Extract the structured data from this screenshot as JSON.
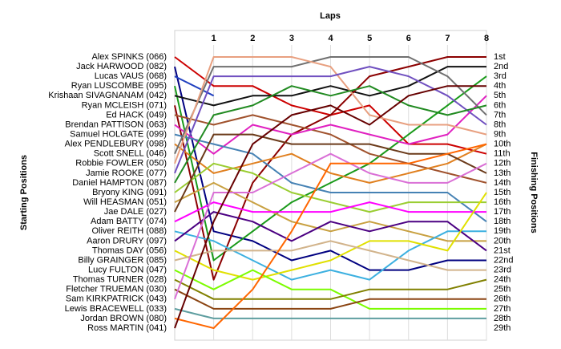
{
  "chart_data": {
    "type": "bump",
    "title": "Laps",
    "y_label": "Starting Positions",
    "y2_label": "Finishing Positions",
    "x": [
      0,
      1,
      2,
      3,
      4,
      5,
      6,
      7,
      8
    ],
    "xlim": [
      0,
      8
    ],
    "xticks": [
      1,
      2,
      3,
      4,
      5,
      6,
      7,
      8
    ],
    "ylim": [
      29,
      1
    ],
    "grid": true,
    "finish_labels": [
      "1st",
      "2nd",
      "3rd",
      "4th",
      "5th",
      "6th",
      "7th",
      "8th",
      "9th",
      "10th",
      "11th",
      "12th",
      "13th",
      "14th",
      "15th",
      "16th",
      "17th",
      "18th",
      "19th",
      "20th",
      "21st",
      "22nd",
      "23rd",
      "24th",
      "25th",
      "26th",
      "27th",
      "28th",
      "29th"
    ],
    "series": [
      {
        "name": "Alex SPINKS (066)",
        "color": "#cc0000",
        "values": [
          1,
          4,
          4,
          6,
          7,
          6,
          10,
          10,
          11
        ]
      },
      {
        "name": "Jack HARWOOD (082)",
        "color": "#000080",
        "values": [
          2,
          19,
          20,
          22,
          21,
          23,
          23,
          22,
          22
        ]
      },
      {
        "name": "Lucas VAUS (068)",
        "color": "#1f3fbf",
        "values": [
          3,
          5,
          null,
          null,
          null,
          null,
          null,
          null,
          null
        ]
      },
      {
        "name": "Ryan LUSCOMBE (095)",
        "color": "#1a9a1a",
        "values": [
          4,
          22,
          19,
          16,
          14,
          12,
          9,
          6,
          3
        ]
      },
      {
        "name": "Krishaan SIVAGNANAM (042)",
        "color": "#111111",
        "values": [
          5,
          6,
          5,
          5,
          4,
          5,
          4,
          2,
          2
        ]
      },
      {
        "name": "Ryan MCLEISH (071)",
        "color": "#8b0000",
        "values": [
          6,
          24,
          14,
          9,
          7,
          3,
          2,
          1,
          1
        ]
      },
      {
        "name": "Ed HACK (049)",
        "color": "#a0522d",
        "values": [
          7,
          8,
          7,
          8,
          9,
          11,
          12,
          13,
          14
        ]
      },
      {
        "name": "Brendan PATTISON (063)",
        "color": "#e020c0",
        "values": [
          8,
          11,
          8,
          9,
          8,
          9,
          10,
          9,
          5
        ]
      },
      {
        "name": "Samuel HOLGATE (099)",
        "color": "#4682b4",
        "values": [
          9,
          10,
          11,
          14,
          15,
          15,
          15,
          15,
          18
        ]
      },
      {
        "name": "Alex PENDLEBURY (098)",
        "color": "#e08020",
        "values": [
          10,
          13,
          12,
          11,
          13,
          14,
          13,
          12,
          10
        ]
      },
      {
        "name": "Scott SNELL (046)",
        "color": "#707070",
        "values": [
          11,
          2,
          2,
          2,
          1,
          1,
          1,
          3,
          7
        ]
      },
      {
        "name": "Robbie FOWLER (050)",
        "color": "#e8a080",
        "values": [
          12,
          1,
          1,
          1,
          2,
          7,
          8,
          8,
          9
        ]
      },
      {
        "name": "Jamie ROOKE (077)",
        "color": "#7050c0",
        "values": [
          13,
          3,
          3,
          3,
          3,
          2,
          3,
          5,
          8
        ]
      },
      {
        "name": "Daniel HAMPTON (087)",
        "color": "#228b22",
        "values": [
          14,
          7,
          6,
          4,
          5,
          4,
          6,
          7,
          6
        ]
      },
      {
        "name": "Bryony KING (091)",
        "color": "#9acd32",
        "values": [
          15,
          12,
          13,
          15,
          16,
          17,
          16,
          16,
          16
        ]
      },
      {
        "name": "Will HEASMAN (051)",
        "color": "#c8a040",
        "values": [
          16,
          14,
          16,
          18,
          19,
          18,
          19,
          20,
          20
        ]
      },
      {
        "name": "Jae DALE (027)",
        "color": "#6b3a1a",
        "values": [
          17,
          9,
          9,
          10,
          10,
          10,
          11,
          11,
          13
        ]
      },
      {
        "name": "Adam BATTY (074)",
        "color": "#ff00ff",
        "values": [
          18,
          16,
          17,
          17,
          17,
          16,
          17,
          17,
          17
        ]
      },
      {
        "name": "Oliver REITH (088)",
        "color": "#3cb0e0",
        "values": [
          19,
          20,
          22,
          24,
          23,
          24,
          21,
          19,
          19
        ]
      },
      {
        "name": "Aaron DRURY (097)",
        "color": "#4b0082",
        "values": [
          20,
          17,
          18,
          20,
          18,
          19,
          18,
          18,
          21
        ]
      },
      {
        "name": "Thomas DAY (056)",
        "color": "#e0e000",
        "values": [
          21,
          23,
          24,
          23,
          22,
          20,
          20,
          21,
          15
        ]
      },
      {
        "name": "Billy GRAINGER (085)",
        "color": "#d2b48c",
        "values": [
          22,
          21,
          21,
          21,
          20,
          21,
          22,
          23,
          23
        ]
      },
      {
        "name": "Lucy FULTON (047)",
        "color": "#7cfc00",
        "values": [
          23,
          25,
          23,
          25,
          25,
          27,
          27,
          27,
          27
        ]
      },
      {
        "name": "Thomas TURNER (028)",
        "color": "#808000",
        "values": [
          24,
          26,
          26,
          26,
          26,
          25,
          25,
          25,
          24
        ]
      },
      {
        "name": "Fletcher TRUEMAN (030)",
        "color": "#8b4513",
        "values": [
          25,
          27,
          27,
          27,
          27,
          26,
          26,
          26,
          26
        ]
      },
      {
        "name": "Sam KIRKPATRICK (043)",
        "color": "#da70d6",
        "values": [
          26,
          15,
          15,
          13,
          11,
          13,
          14,
          14,
          12
        ]
      },
      {
        "name": "Lewis BRACEWELL (033)",
        "color": "#5f9ea0",
        "values": [
          27,
          28,
          28,
          28,
          28,
          28,
          28,
          28,
          28
        ]
      },
      {
        "name": "Jordan BROWN (080)",
        "color": "#ff6600",
        "values": [
          28,
          29,
          25,
          19,
          12,
          12,
          12,
          11,
          10
        ]
      },
      {
        "name": "Ross MARTIN (041)",
        "color": "#660000",
        "values": [
          29,
          18,
          10,
          7,
          6,
          8,
          5,
          4,
          4
        ]
      }
    ]
  }
}
